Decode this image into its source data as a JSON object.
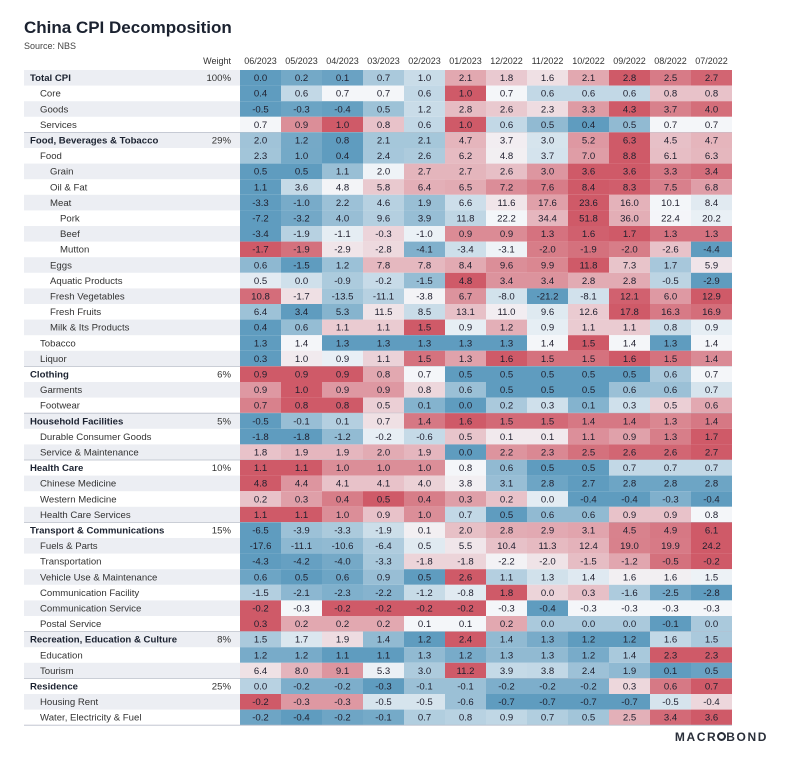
{
  "title": "China CPI Decomposition",
  "subtitle": "Source: NBS",
  "brand": {
    "text_before": "MACR",
    "text_after": "BOND"
  },
  "colors": {
    "low": "#5f9cbf",
    "mid": "#f4f6f9",
    "high": "#cf5a68",
    "stripe": "#eceef3",
    "divider": "#b9bec9"
  },
  "chart_data": {
    "type": "heatmap",
    "weight_header": "Weight",
    "columns": [
      "06/2023",
      "05/2023",
      "04/2023",
      "03/2023",
      "02/2023",
      "01/2023",
      "12/2022",
      "11/2022",
      "10/2022",
      "09/2022",
      "08/2022",
      "07/2022"
    ],
    "rows": [
      {
        "label": "Total CPI",
        "level": 0,
        "bold": true,
        "weight": "100%",
        "values": [
          0.0,
          0.2,
          0.1,
          0.7,
          1.0,
          2.1,
          1.8,
          1.6,
          2.1,
          2.8,
          2.5,
          2.7
        ]
      },
      {
        "label": "Core",
        "level": 1,
        "bold": false,
        "weight": "",
        "values": [
          0.4,
          0.6,
          0.7,
          0.7,
          0.6,
          1.0,
          0.7,
          0.6,
          0.6,
          0.6,
          0.8,
          0.8
        ]
      },
      {
        "label": "Goods",
        "level": 1,
        "bold": false,
        "weight": "",
        "values": [
          -0.5,
          -0.3,
          -0.4,
          0.5,
          1.2,
          2.8,
          2.6,
          2.3,
          3.3,
          4.3,
          3.7,
          4.0
        ]
      },
      {
        "label": "Services",
        "level": 1,
        "bold": false,
        "weight": "",
        "values": [
          0.7,
          0.9,
          1.0,
          0.8,
          0.6,
          1.0,
          0.6,
          0.5,
          0.4,
          0.5,
          0.7,
          0.7
        ]
      },
      {
        "label": "Food, Beverages & Tobacco",
        "level": 0,
        "bold": true,
        "weight": "29%",
        "values": [
          2.0,
          1.2,
          0.8,
          2.1,
          2.1,
          4.7,
          3.7,
          3.0,
          5.2,
          6.3,
          4.5,
          4.7
        ]
      },
      {
        "label": "Food",
        "level": 1,
        "bold": false,
        "weight": "",
        "values": [
          2.3,
          1.0,
          0.4,
          2.4,
          2.6,
          6.2,
          4.8,
          3.7,
          7.0,
          8.8,
          6.1,
          6.3
        ]
      },
      {
        "label": "Grain",
        "level": 2,
        "bold": false,
        "weight": "",
        "values": [
          0.5,
          0.5,
          1.1,
          2.0,
          2.7,
          2.7,
          2.6,
          3.0,
          3.6,
          3.6,
          3.3,
          3.4
        ]
      },
      {
        "label": "Oil & Fat",
        "level": 2,
        "bold": false,
        "weight": "",
        "values": [
          1.1,
          3.6,
          4.8,
          5.8,
          6.4,
          6.5,
          7.2,
          7.6,
          8.4,
          8.3,
          7.5,
          6.8
        ]
      },
      {
        "label": "Meat",
        "level": 2,
        "bold": false,
        "weight": "",
        "values": [
          -3.3,
          -1.0,
          2.2,
          4.6,
          1.9,
          6.6,
          11.6,
          17.6,
          23.6,
          16.0,
          10.1,
          8.4
        ]
      },
      {
        "label": "Pork",
        "level": 3,
        "bold": false,
        "weight": "",
        "values": [
          -7.2,
          -3.2,
          4.0,
          9.6,
          3.9,
          11.8,
          22.2,
          34.4,
          51.8,
          36.0,
          22.4,
          20.2
        ]
      },
      {
        "label": "Beef",
        "level": 3,
        "bold": false,
        "weight": "",
        "values": [
          -3.4,
          -1.9,
          -1.1,
          -0.3,
          -1.0,
          0.9,
          0.9,
          1.3,
          1.6,
          1.7,
          1.3,
          1.3
        ]
      },
      {
        "label": "Mutton",
        "level": 3,
        "bold": false,
        "weight": "",
        "values": [
          -1.7,
          -1.9,
          -2.9,
          -2.8,
          -4.1,
          -3.4,
          -3.1,
          -2.0,
          -1.9,
          -2.0,
          -2.6,
          -4.4
        ]
      },
      {
        "label": "Eggs",
        "level": 2,
        "bold": false,
        "weight": "",
        "values": [
          0.6,
          -1.5,
          1.2,
          7.8,
          7.8,
          8.4,
          9.6,
          9.9,
          11.8,
          7.3,
          1.7,
          5.9
        ]
      },
      {
        "label": "Aquatic Products",
        "level": 2,
        "bold": false,
        "weight": "",
        "values": [
          0.5,
          0.0,
          -0.9,
          -0.2,
          -1.5,
          4.8,
          3.4,
          3.4,
          2.8,
          2.8,
          -0.5,
          -2.9
        ]
      },
      {
        "label": "Fresh Vegetables",
        "level": 2,
        "bold": false,
        "weight": "",
        "values": [
          10.8,
          -1.7,
          -13.5,
          -11.1,
          -3.8,
          6.7,
          -8.0,
          -21.2,
          -8.1,
          12.1,
          6.0,
          12.9
        ]
      },
      {
        "label": "Fresh Fruits",
        "level": 2,
        "bold": false,
        "weight": "",
        "values": [
          6.4,
          3.4,
          5.3,
          11.5,
          8.5,
          13.1,
          11.0,
          9.6,
          12.6,
          17.8,
          16.3,
          16.9
        ]
      },
      {
        "label": "Milk & Its Products",
        "level": 2,
        "bold": false,
        "weight": "",
        "values": [
          0.4,
          0.6,
          1.1,
          1.1,
          1.5,
          0.9,
          1.2,
          0.9,
          1.1,
          1.1,
          0.8,
          0.9
        ]
      },
      {
        "label": "Tobacco",
        "level": 1,
        "bold": false,
        "weight": "",
        "values": [
          1.3,
          1.4,
          1.3,
          1.3,
          1.3,
          1.3,
          1.3,
          1.4,
          1.5,
          1.4,
          1.3,
          1.4
        ]
      },
      {
        "label": "Liquor",
        "level": 1,
        "bold": false,
        "weight": "",
        "values": [
          0.3,
          1.0,
          0.9,
          1.1,
          1.5,
          1.3,
          1.6,
          1.5,
          1.5,
          1.6,
          1.5,
          1.4
        ]
      },
      {
        "label": "Clothing",
        "level": 0,
        "bold": true,
        "weight": "6%",
        "values": [
          0.9,
          0.9,
          0.9,
          0.8,
          0.7,
          0.5,
          0.5,
          0.5,
          0.5,
          0.5,
          0.6,
          0.7
        ]
      },
      {
        "label": "Garments",
        "level": 1,
        "bold": false,
        "weight": "",
        "values": [
          0.9,
          1.0,
          0.9,
          0.9,
          0.8,
          0.6,
          0.5,
          0.5,
          0.5,
          0.6,
          0.6,
          0.7
        ]
      },
      {
        "label": "Footwear",
        "level": 1,
        "bold": false,
        "weight": "",
        "values": [
          0.7,
          0.8,
          0.8,
          0.5,
          0.1,
          0.0,
          0.2,
          0.3,
          0.1,
          0.3,
          0.5,
          0.6
        ]
      },
      {
        "label": "Household Facilities",
        "level": 0,
        "bold": true,
        "weight": "5%",
        "values": [
          -0.5,
          -0.1,
          0.1,
          0.7,
          1.4,
          1.6,
          1.5,
          1.5,
          1.4,
          1.4,
          1.3,
          1.4
        ]
      },
      {
        "label": "Durable Consumer Goods",
        "level": 1,
        "bold": false,
        "weight": "",
        "values": [
          -1.8,
          -1.8,
          -1.2,
          -0.2,
          -0.6,
          0.5,
          0.1,
          0.1,
          1.1,
          0.9,
          1.3,
          1.7
        ]
      },
      {
        "label": "Service & Maintenance",
        "level": 1,
        "bold": false,
        "weight": "",
        "values": [
          1.8,
          1.9,
          1.9,
          2.0,
          1.9,
          0.0,
          2.2,
          2.3,
          2.5,
          2.6,
          2.6,
          2.7
        ]
      },
      {
        "label": "Health Care",
        "level": 0,
        "bold": true,
        "weight": "10%",
        "values": [
          1.1,
          1.1,
          1.0,
          1.0,
          1.0,
          0.8,
          0.6,
          0.5,
          0.5,
          0.7,
          0.7,
          0.7
        ]
      },
      {
        "label": "Chinese Medicine",
        "level": 1,
        "bold": false,
        "weight": "",
        "values": [
          4.8,
          4.4,
          4.1,
          4.1,
          4.0,
          3.8,
          3.1,
          2.8,
          2.7,
          2.8,
          2.8,
          2.8
        ]
      },
      {
        "label": "Western Medicine",
        "level": 1,
        "bold": false,
        "weight": "",
        "values": [
          0.2,
          0.3,
          0.4,
          0.5,
          0.4,
          0.3,
          0.2,
          0.0,
          -0.4,
          -0.4,
          -0.3,
          -0.4
        ]
      },
      {
        "label": "Health Care Services",
        "level": 1,
        "bold": false,
        "weight": "",
        "values": [
          1.1,
          1.1,
          1.0,
          0.9,
          1.0,
          0.7,
          0.5,
          0.6,
          0.6,
          0.9,
          0.9,
          0.8
        ]
      },
      {
        "label": "Transport & Communications",
        "level": 0,
        "bold": true,
        "weight": "15%",
        "values": [
          -6.5,
          -3.9,
          -3.3,
          -1.9,
          0.1,
          2.0,
          2.8,
          2.9,
          3.1,
          4.5,
          4.9,
          6.1
        ]
      },
      {
        "label": "Fuels & Parts",
        "level": 1,
        "bold": false,
        "weight": "",
        "values": [
          -17.6,
          -11.1,
          -10.6,
          -6.4,
          0.5,
          5.5,
          10.4,
          11.3,
          12.4,
          19.0,
          19.9,
          24.2
        ]
      },
      {
        "label": "Transportation",
        "level": 1,
        "bold": false,
        "weight": "",
        "values": [
          -4.3,
          -4.2,
          -4.0,
          -3.3,
          -1.8,
          -1.8,
          -2.2,
          -2.0,
          -1.5,
          -1.2,
          -0.5,
          -0.2
        ]
      },
      {
        "label": "Vehicle Use & Maintenance",
        "level": 1,
        "bold": false,
        "weight": "",
        "values": [
          0.6,
          0.5,
          0.6,
          0.9,
          0.5,
          2.6,
          1.1,
          1.3,
          1.4,
          1.6,
          1.6,
          1.5
        ]
      },
      {
        "label": "Communication Facility",
        "level": 1,
        "bold": false,
        "weight": "",
        "values": [
          -1.5,
          -2.1,
          -2.3,
          -2.2,
          -1.2,
          -0.8,
          1.8,
          0.0,
          0.3,
          -1.6,
          -2.5,
          -2.8
        ]
      },
      {
        "label": "Communication Service",
        "level": 1,
        "bold": false,
        "weight": "",
        "values": [
          -0.2,
          -0.3,
          -0.2,
          -0.2,
          -0.2,
          -0.2,
          -0.3,
          -0.4,
          -0.3,
          -0.3,
          -0.3,
          -0.3
        ]
      },
      {
        "label": "Postal Service",
        "level": 1,
        "bold": false,
        "weight": "",
        "values": [
          0.3,
          0.2,
          0.2,
          0.2,
          0.1,
          0.1,
          0.2,
          0.0,
          0.0,
          0.0,
          -0.1,
          0.0
        ]
      },
      {
        "label": "Recreation, Education & Culture",
        "level": 0,
        "bold": true,
        "weight": "8%",
        "values": [
          1.5,
          1.7,
          1.9,
          1.4,
          1.2,
          2.4,
          1.4,
          1.3,
          1.2,
          1.2,
          1.6,
          1.5
        ]
      },
      {
        "label": "Education",
        "level": 1,
        "bold": false,
        "weight": "",
        "values": [
          1.2,
          1.2,
          1.1,
          1.1,
          1.3,
          1.2,
          1.3,
          1.3,
          1.2,
          1.4,
          2.3,
          2.3
        ]
      },
      {
        "label": "Tourism",
        "level": 1,
        "bold": false,
        "weight": "",
        "values": [
          6.4,
          8.0,
          9.1,
          5.3,
          3.0,
          11.2,
          3.9,
          3.8,
          2.4,
          1.9,
          0.1,
          0.5
        ]
      },
      {
        "label": "Residence",
        "level": 0,
        "bold": true,
        "weight": "25%",
        "values": [
          0.0,
          -0.2,
          -0.2,
          -0.3,
          -0.1,
          -0.1,
          -0.2,
          -0.2,
          -0.2,
          0.3,
          0.6,
          0.7
        ]
      },
      {
        "label": "Housing Rent",
        "level": 1,
        "bold": false,
        "weight": "",
        "values": [
          -0.2,
          -0.3,
          -0.3,
          -0.5,
          -0.5,
          -0.6,
          -0.7,
          -0.7,
          -0.7,
          -0.7,
          -0.5,
          -0.4
        ]
      },
      {
        "label": "Water, Electricity & Fuel",
        "level": 1,
        "bold": false,
        "weight": "",
        "values": [
          -0.2,
          -0.4,
          -0.2,
          -0.1,
          0.7,
          0.8,
          0.9,
          0.7,
          0.5,
          2.5,
          3.4,
          3.6
        ]
      }
    ]
  }
}
